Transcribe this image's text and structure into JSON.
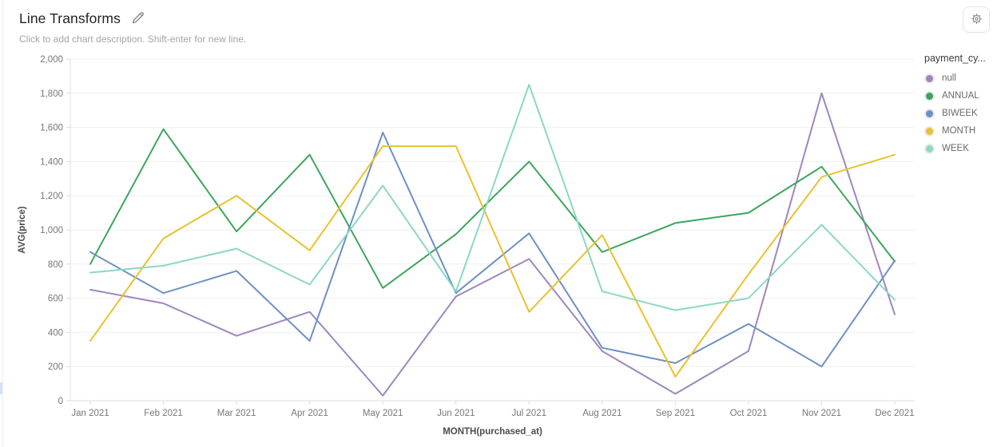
{
  "header": {
    "title": "Line Transforms",
    "subtitle": "Click to add chart description. Shift-enter for new line."
  },
  "icons": {
    "edit_icon": "pencil",
    "settings_icon": "gear"
  },
  "legend": {
    "title": "payment_cy..."
  },
  "chart_data": {
    "type": "line",
    "title": "Line Transforms",
    "xlabel": "MONTH(purchased_at)",
    "ylabel": "AVG(price)",
    "ylim": [
      0,
      2000
    ],
    "ytick_interval": 200,
    "grid": true,
    "legend_position": "right",
    "legend_title": "payment_cy...",
    "categories": [
      "Jan 2021",
      "Feb 2021",
      "Mar 2021",
      "Apr 2021",
      "May 2021",
      "Jun 2021",
      "Jul 2021",
      "Aug 2021",
      "Sep 2021",
      "Oct 2021",
      "Nov 2021",
      "Dec 2021"
    ],
    "series": [
      {
        "name": "null",
        "color": "#9d87bd",
        "values": [
          650,
          570,
          380,
          520,
          30,
          610,
          830,
          290,
          40,
          290,
          1800,
          505
        ]
      },
      {
        "name": "ANNUAL",
        "color": "#3ca55c",
        "values": [
          800,
          1590,
          990,
          1440,
          660,
          975,
          1400,
          870,
          1040,
          1100,
          1370,
          815
        ]
      },
      {
        "name": "BIWEEK",
        "color": "#6e90c4",
        "values": [
          870,
          630,
          760,
          350,
          1570,
          630,
          980,
          310,
          220,
          450,
          200,
          820
        ]
      },
      {
        "name": "MONTH",
        "color": "#eac12e",
        "values": [
          350,
          950,
          1200,
          880,
          1490,
          1490,
          520,
          970,
          140,
          740,
          1310,
          1440
        ]
      },
      {
        "name": "WEEK",
        "color": "#8bd8c3",
        "values": [
          750,
          790,
          890,
          680,
          1260,
          640,
          1850,
          640,
          530,
          600,
          1030,
          590
        ]
      }
    ],
    "styles": {
      "grid_color": "#efeff1",
      "axis_color": "#dddde0",
      "tick_label_color": "#77777c",
      "axis_title_color": "#4b4b50"
    }
  }
}
